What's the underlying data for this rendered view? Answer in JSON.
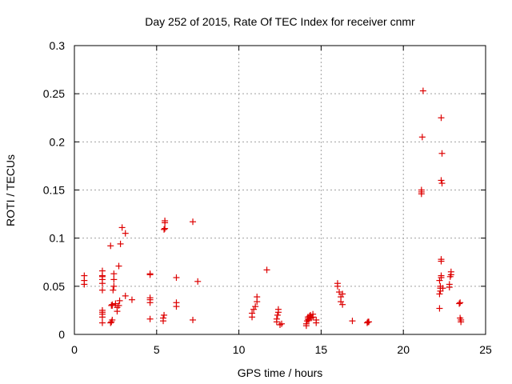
{
  "chart_data": {
    "type": "scatter",
    "title": "Day 252 of 2015, Rate Of TEC Index for receiver cnmr",
    "xlabel": "GPS time / hours",
    "ylabel": "ROTI / TECUs",
    "xlim": [
      0,
      25
    ],
    "ylim": [
      0,
      0.3
    ],
    "xticks": [
      0,
      5,
      10,
      15,
      20,
      25
    ],
    "yticks": [
      0,
      0.05,
      0.1,
      0.15,
      0.2,
      0.25,
      0.3
    ],
    "xtick_labels": [
      "0",
      "5",
      "10",
      "15",
      "20",
      "25"
    ],
    "ytick_labels": [
      "0",
      "0.05",
      "0.1",
      "0.15",
      "0.2",
      "0.25",
      "0.3"
    ],
    "grid": true,
    "marker": "+",
    "color": "#dd0000",
    "series": [
      {
        "name": "ROTI",
        "x": [
          0.6,
          0.6,
          0.6,
          1.7,
          1.7,
          1.7,
          1.7,
          1.7,
          1.7,
          1.7,
          1.7,
          1.7,
          1.7,
          1.7,
          2.2,
          2.2,
          2.25,
          2.25,
          2.3,
          2.3,
          2.3,
          2.35,
          2.4,
          2.4,
          2.4,
          2.5,
          2.6,
          2.6,
          2.7,
          2.7,
          2.75,
          2.8,
          2.9,
          3.1,
          3.1,
          3.5,
          4.6,
          4.6,
          4.6,
          4.6,
          4.6,
          4.6,
          5.4,
          5.4,
          5.45,
          5.45,
          5.5,
          5.5,
          5.5,
          6.2,
          6.2,
          6.2,
          7.2,
          7.2,
          7.5,
          10.8,
          10.8,
          10.9,
          11.0,
          11.1,
          11.1,
          11.7,
          12.3,
          12.3,
          12.35,
          12.4,
          12.4,
          12.5,
          12.6,
          14.1,
          14.1,
          14.15,
          14.2,
          14.2,
          14.25,
          14.3,
          14.35,
          14.4,
          14.5,
          14.5,
          14.7,
          14.7,
          16.0,
          16.0,
          16.1,
          16.2,
          16.2,
          16.3,
          16.3,
          16.9,
          17.8,
          17.85,
          17.9,
          21.1,
          21.1,
          21.1,
          21.15,
          21.2,
          22.2,
          22.2,
          22.25,
          22.25,
          22.25,
          22.2,
          22.3,
          22.3,
          22.3,
          22.3,
          22.35,
          22.3,
          22.35,
          22.3,
          22.4,
          22.8,
          22.8,
          22.85,
          22.9,
          22.9,
          23.4,
          23.45,
          23.5,
          23.45,
          23.5
        ],
        "y": [
          0.052,
          0.056,
          0.061,
          0.012,
          0.018,
          0.021,
          0.023,
          0.025,
          0.046,
          0.053,
          0.057,
          0.06,
          0.061,
          0.066,
          0.012,
          0.092,
          0.013,
          0.03,
          0.015,
          0.03,
          0.031,
          0.046,
          0.05,
          0.057,
          0.063,
          0.032,
          0.024,
          0.028,
          0.03,
          0.071,
          0.035,
          0.094,
          0.111,
          0.105,
          0.04,
          0.036,
          0.016,
          0.033,
          0.036,
          0.038,
          0.062,
          0.063,
          0.014,
          0.017,
          0.02,
          0.109,
          0.11,
          0.116,
          0.118,
          0.029,
          0.033,
          0.059,
          0.015,
          0.117,
          0.055,
          0.018,
          0.022,
          0.026,
          0.029,
          0.034,
          0.039,
          0.067,
          0.013,
          0.016,
          0.02,
          0.023,
          0.026,
          0.01,
          0.011,
          0.009,
          0.011,
          0.014,
          0.016,
          0.018,
          0.015,
          0.019,
          0.02,
          0.017,
          0.018,
          0.021,
          0.012,
          0.015,
          0.05,
          0.053,
          0.044,
          0.034,
          0.039,
          0.031,
          0.042,
          0.014,
          0.012,
          0.013,
          0.013,
          0.146,
          0.148,
          0.15,
          0.205,
          0.253,
          0.027,
          0.042,
          0.045,
          0.048,
          0.05,
          0.056,
          0.059,
          0.061,
          0.076,
          0.078,
          0.157,
          0.16,
          0.188,
          0.225,
          0.048,
          0.049,
          0.052,
          0.06,
          0.062,
          0.065,
          0.032,
          0.033,
          0.015,
          0.017,
          0.013
        ]
      }
    ]
  }
}
